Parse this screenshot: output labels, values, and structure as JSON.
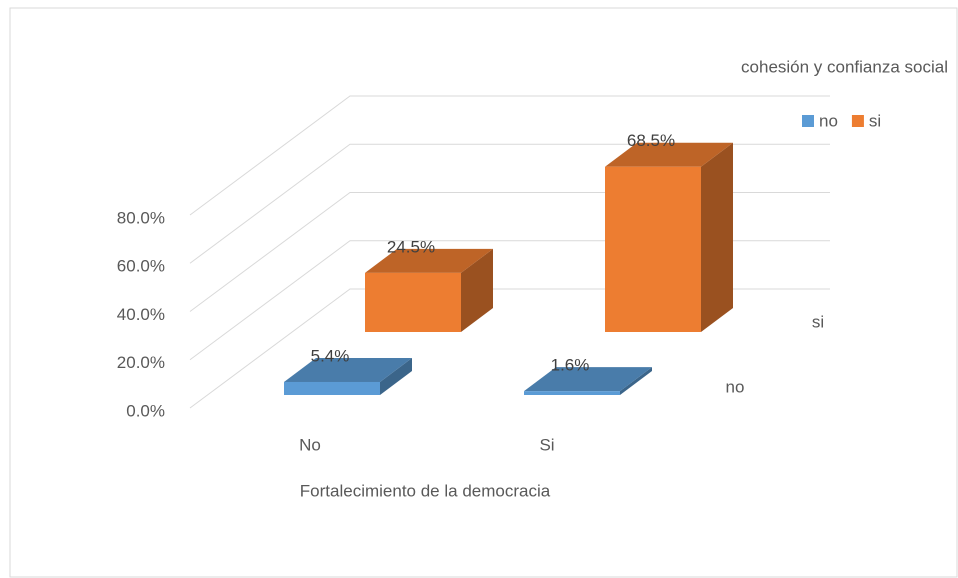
{
  "chart_data": {
    "type": "bar3d",
    "legend_title": "cohesión y confianza social",
    "x_label": "Fortalecimiento de   la democracia",
    "categories": [
      "No",
      "Si"
    ],
    "series": [
      {
        "name": "no",
        "color": "#5b9bd5",
        "values": [
          5.4,
          1.6
        ],
        "value_labels": [
          "5.4%",
          "1.6%"
        ]
      },
      {
        "name": "si",
        "color": "#ed7d31",
        "values": [
          24.5,
          68.5
        ],
        "value_labels": [
          "24.5%",
          "68.5%"
        ]
      }
    ],
    "ylim": [
      0,
      80
    ],
    "yticks": [
      {
        "value": 0,
        "label": "0.0%"
      },
      {
        "value": 20,
        "label": "20.0%"
      },
      {
        "value": 40,
        "label": "40.0%"
      },
      {
        "value": 60,
        "label": "60.0%"
      },
      {
        "value": 80,
        "label": "80.0%"
      }
    ],
    "grid": true,
    "legend": "top-right"
  }
}
